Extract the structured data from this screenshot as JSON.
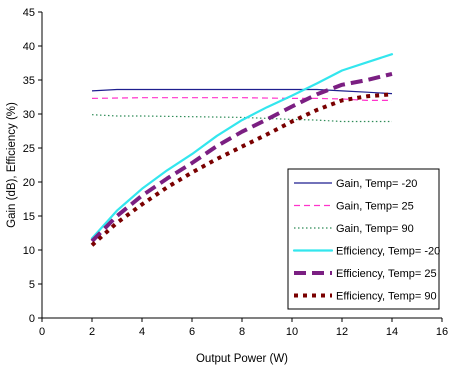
{
  "chart_data": {
    "type": "line",
    "title": "",
    "xlabel": "Output Power (W)",
    "ylabel": "Gain (dB), Efficiency (%)",
    "xlim": [
      0,
      16
    ],
    "ylim": [
      0,
      45
    ],
    "xticks": [
      0,
      2,
      4,
      6,
      8,
      10,
      12,
      14,
      16
    ],
    "yticks": [
      0,
      5,
      10,
      15,
      20,
      25,
      30,
      35,
      40,
      45
    ],
    "grid": false,
    "legend_position": "bottom-right",
    "series": [
      {
        "name": "Gain, Temp= -20",
        "color": "#1f1f8f",
        "style": "solid-thin",
        "x": [
          2,
          3,
          4,
          6,
          8,
          10,
          11,
          12,
          13,
          14
        ],
        "y": [
          33.4,
          33.6,
          33.6,
          33.6,
          33.6,
          33.6,
          33.6,
          33.4,
          33.2,
          33.0
        ]
      },
      {
        "name": "Gain, Temp= 25",
        "color": "#ff33cc",
        "style": "dashed-thin",
        "x": [
          2,
          4,
          6,
          8,
          10,
          11,
          12,
          13,
          14
        ],
        "y": [
          32.3,
          32.4,
          32.4,
          32.4,
          32.3,
          32.3,
          32.2,
          32.0,
          32.0
        ]
      },
      {
        "name": "Gain, Temp= 90",
        "color": "#2e8b57",
        "style": "dotted-thin",
        "x": [
          2,
          3,
          4,
          6,
          8,
          10,
          11,
          12,
          13,
          14
        ],
        "y": [
          29.9,
          29.7,
          29.7,
          29.6,
          29.5,
          29.2,
          29.1,
          28.9,
          28.9,
          28.9
        ]
      },
      {
        "name": "Efficiency, Temp= -20",
        "color": "#33e6ee",
        "style": "solid-thick",
        "x": [
          2,
          3,
          4,
          5,
          6,
          7,
          8,
          9,
          10,
          11,
          12,
          13,
          14
        ],
        "y": [
          11.7,
          15.8,
          19.0,
          21.7,
          24.1,
          26.8,
          29.1,
          31.0,
          32.7,
          34.5,
          36.4,
          37.6,
          38.8
        ]
      },
      {
        "name": "Efficiency, Temp= 25",
        "color": "#7b1f82",
        "style": "dashed-thick",
        "x": [
          2,
          3,
          4,
          5,
          6,
          7,
          8,
          9,
          10,
          11,
          12,
          13,
          14
        ],
        "y": [
          11.3,
          15.0,
          18.0,
          20.5,
          22.8,
          25.3,
          27.4,
          29.2,
          31.1,
          32.9,
          34.3,
          35.0,
          35.9
        ]
      },
      {
        "name": "Efficiency, Temp= 90",
        "color": "#7a0000",
        "style": "dotted-thick",
        "x": [
          2,
          3,
          4,
          5,
          6,
          7,
          8,
          9,
          10,
          11,
          12,
          13,
          14
        ],
        "y": [
          10.7,
          14.0,
          16.7,
          19.2,
          21.4,
          23.4,
          25.2,
          27.0,
          28.9,
          30.6,
          32.0,
          32.6,
          32.9
        ]
      }
    ]
  }
}
